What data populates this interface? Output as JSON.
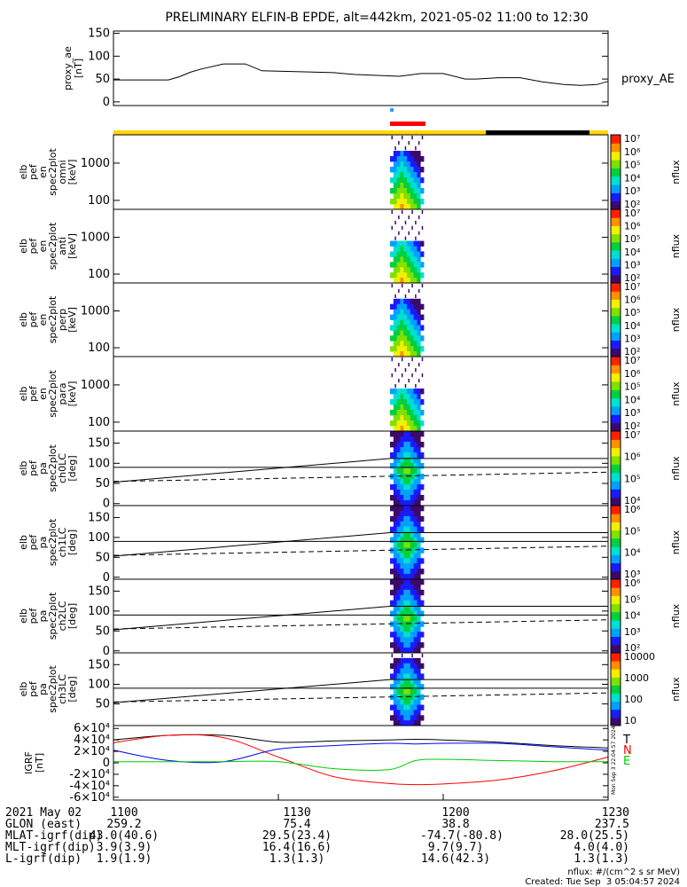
{
  "title": "PRELIMINARY ELFIN-B EPDE, alt=442km, 2021-05-02 11:00 to 12:30",
  "proxy_label": "proxy_AE",
  "chart_data": [
    {
      "type": "line",
      "name": "proxy_ae",
      "ylabel_lines": [
        "proxy_ae",
        "[nT]"
      ],
      "ylim": [
        -8,
        155
      ],
      "yticks": [
        "0",
        "50",
        "100",
        "150"
      ],
      "ytick_values": [
        0,
        50,
        100,
        150
      ],
      "x_minutes": [
        0,
        6,
        10,
        12,
        14,
        16,
        20,
        24,
        27,
        30,
        34,
        40,
        44,
        48,
        52,
        56,
        60,
        64,
        66,
        70,
        74,
        78,
        82,
        85,
        88,
        90
      ],
      "values": [
        48,
        48,
        48,
        55,
        65,
        72,
        83,
        83,
        68,
        67,
        66,
        64,
        60,
        58,
        56,
        62,
        62,
        50,
        50,
        53,
        53,
        44,
        38,
        36,
        38,
        45
      ]
    },
    {
      "type": "heatmap",
      "name": "elb_pef_en_spec2plot_omni",
      "ylabel_lines": [
        "elb",
        "pef",
        "en",
        "spec2plot",
        "omni",
        "[keV]"
      ],
      "yticks": [
        "100",
        "1000"
      ],
      "colorbar": {
        "label": "nflux",
        "ticks": [
          "10²",
          "10³",
          "10⁴",
          "10⁵",
          "10⁶",
          "10⁷"
        ]
      }
    },
    {
      "type": "heatmap",
      "name": "elb_pef_en_spec2plot_anti",
      "ylabel_lines": [
        "elb",
        "pef",
        "en",
        "spec2plot",
        "anti",
        "[keV]"
      ],
      "yticks": [
        "100",
        "1000"
      ],
      "colorbar": {
        "label": "nflux",
        "ticks": [
          "10²",
          "10³",
          "10⁴",
          "10⁵",
          "10⁶",
          "10⁷"
        ]
      }
    },
    {
      "type": "heatmap",
      "name": "elb_pef_en_spec2plot_perp",
      "ylabel_lines": [
        "elb",
        "pef",
        "en",
        "spec2plot",
        "perp",
        "[keV]"
      ],
      "yticks": [
        "100",
        "1000"
      ],
      "colorbar": {
        "label": "nflux",
        "ticks": [
          "10²",
          "10³",
          "10⁴",
          "10⁵",
          "10⁶",
          "10⁷"
        ]
      }
    },
    {
      "type": "heatmap",
      "name": "elb_pef_en_spec2plot_para",
      "ylabel_lines": [
        "elb",
        "pef",
        "en",
        "spec2plot",
        "para",
        "[keV]"
      ],
      "yticks": [
        "100",
        "1000"
      ],
      "colorbar": {
        "label": "nflux",
        "ticks": [
          "10²",
          "10³",
          "10⁴",
          "10⁵",
          "10⁶",
          "10⁷"
        ]
      }
    },
    {
      "type": "heatmap",
      "name": "elb_pef_pa_spec2plot_ch0LC",
      "ylabel_lines": [
        "elb",
        "pef",
        "pa",
        "spec2plot",
        "ch0LC",
        "[deg]"
      ],
      "yticks": [
        "0",
        "50",
        "100",
        "150"
      ],
      "colorbar": {
        "label": "nflux",
        "ticks": [
          "10⁴",
          "10⁵",
          "10⁶",
          "10⁷"
        ]
      }
    },
    {
      "type": "heatmap",
      "name": "elb_pef_pa_spec2plot_ch1LC",
      "ylabel_lines": [
        "elb",
        "pef",
        "pa",
        "spec2plot",
        "ch1LC",
        "[deg]"
      ],
      "yticks": [
        "0",
        "50",
        "100",
        "150"
      ],
      "colorbar": {
        "label": "nflux",
        "ticks": [
          "10³",
          "10⁴",
          "10⁵",
          "10⁶"
        ]
      }
    },
    {
      "type": "heatmap",
      "name": "elb_pef_pa_spec2plot_ch2LC",
      "ylabel_lines": [
        "elb",
        "pef",
        "pa",
        "spec2plot",
        "ch2LC",
        "[deg]"
      ],
      "yticks": [
        "0",
        "50",
        "100",
        "150"
      ],
      "colorbar": {
        "label": "nflux",
        "ticks": [
          "10²",
          "10³",
          "10⁴",
          "10⁵",
          "10⁶"
        ]
      }
    },
    {
      "type": "heatmap",
      "name": "elb_pef_pa_spec2plot_ch3LC",
      "ylabel_lines": [
        "elb",
        "pef",
        "pa",
        "spec2plot",
        "ch3LC",
        "[deg]"
      ],
      "yticks": [
        "50",
        "100",
        "150"
      ],
      "colorbar": {
        "label": "nflux",
        "ticks": [
          "10",
          "100",
          "1000",
          "10000"
        ]
      }
    },
    {
      "type": "line",
      "name": "IGRF",
      "ylabel_lines": [
        "IGRF",
        "[nT]"
      ],
      "yticks": [
        "-6×10⁴",
        "-4×10⁴",
        "-2×10⁴",
        "0",
        "2×10⁴",
        "4×10⁴",
        "6×10⁴"
      ],
      "legend": [
        "T",
        "N",
        "E"
      ],
      "x_minutes": [
        0,
        10,
        20,
        30,
        40,
        50,
        55,
        60,
        70,
        80,
        90
      ],
      "series": [
        {
          "name": "T",
          "color": "#000000",
          "values": [
            40000,
            48000,
            48000,
            36000,
            38000,
            40000,
            41000,
            40000,
            36000,
            30000,
            26000
          ]
        },
        {
          "name": "N",
          "color": "#ff0000",
          "values": [
            35000,
            48000,
            44000,
            10000,
            -24000,
            -36000,
            -38000,
            -37000,
            -30000,
            -14000,
            10000
          ]
        },
        {
          "name": "E",
          "color": "#0000ff",
          "values": [
            22000,
            4000,
            2000,
            24000,
            30000,
            34000,
            33000,
            34000,
            34000,
            28000,
            22000
          ]
        },
        {
          "name": "green",
          "color": "#00cc00",
          "values": [
            2000,
            2000,
            2000,
            2000,
            -10000,
            -12000,
            4000,
            6000,
            4000,
            2000,
            2000
          ]
        }
      ],
      "ylim": [
        -65000,
        65000
      ]
    }
  ],
  "xaxis_ticks": [
    "1100",
    "1130",
    "1200",
    "1230"
  ],
  "colorbar_vertical_note": "Mon Sep 3 22:04:57 2024",
  "footer": {
    "rows": [
      {
        "label": "2021 May 02",
        "values": [
          "1100",
          "1130",
          "1200",
          "1230"
        ]
      },
      {
        "label": "GLON (east)",
        "values": [
          "259.2",
          "75.4",
          "38.8",
          "237.5"
        ]
      },
      {
        "label": "MLAT-igrf(dip)",
        "values": [
          "43.0(40.6)",
          "29.5(23.4)",
          "-74.7(-80.8)",
          "28.0(25.5)"
        ]
      },
      {
        "label": "MLT-igrf(dip)",
        "values": [
          "3.9(3.9)",
          "16.4(16.6)",
          "9.7(9.7)",
          "4.0(4.0)"
        ]
      },
      {
        "label": "L-igrf(dip)",
        "values": [
          "1.9(1.9)",
          "1.3(1.3)",
          "14.6(42.3)",
          "1.3(1.3)"
        ]
      }
    ],
    "credit_units": "nflux: #/(cm^2 s sr MeV)",
    "credit_created": "Created: Tue Sep  3 05:04:57 2024"
  }
}
